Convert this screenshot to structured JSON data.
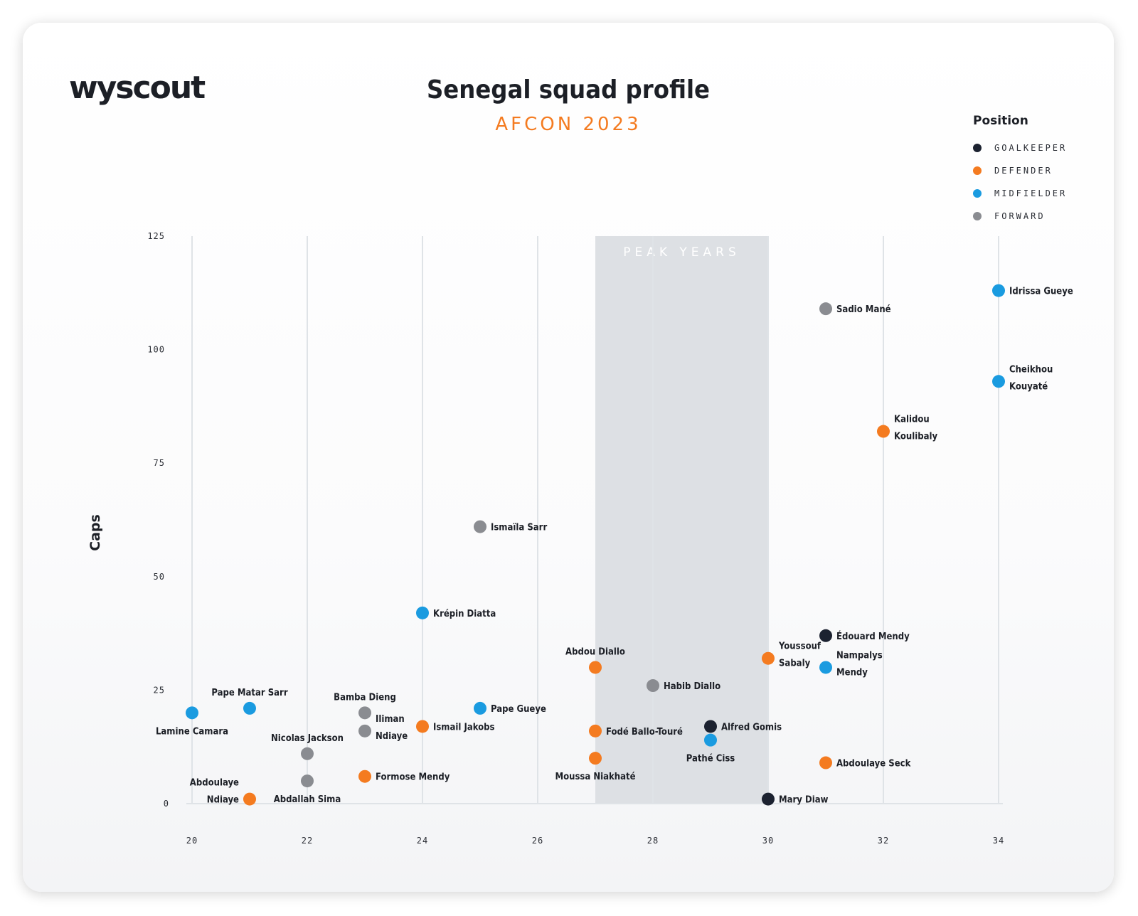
{
  "brand": "wyscout",
  "chart_data": {
    "type": "scatter",
    "title": "Senegal squad profile",
    "subtitle": "AFCON 2023",
    "ylabel": "Caps",
    "xlabel": "",
    "xlim": [
      20,
      34
    ],
    "ylim": [
      0,
      125
    ],
    "x_ticks": [
      20,
      22,
      24,
      26,
      28,
      30,
      32,
      34
    ],
    "y_ticks": [
      0,
      25,
      50,
      75,
      100,
      125
    ],
    "grid": "vertical",
    "shaded_region": {
      "label": "PEAK YEARS",
      "x_range": [
        27,
        30
      ]
    },
    "legend": {
      "title": "Position",
      "placement": "top-right",
      "entries": [
        {
          "key": "GK",
          "label": "GOALKEEPER",
          "color": "#1c2230"
        },
        {
          "key": "DF",
          "label": "DEFENDER",
          "color": "#f47b20"
        },
        {
          "key": "MF",
          "label": "MIDFIELDER",
          "color": "#1a9be0"
        },
        {
          "key": "FW",
          "label": "FORWARD",
          "color": "#8a8c91"
        }
      ]
    },
    "points": [
      {
        "lines": [
          "Idrissa Gueye"
        ],
        "x": 34,
        "y": 113,
        "pos": "MF",
        "anchor": "right"
      },
      {
        "lines": [
          "Sadio Mané"
        ],
        "x": 31,
        "y": 109,
        "pos": "FW",
        "anchor": "right"
      },
      {
        "lines": [
          "Cheikhou",
          "Kouyaté"
        ],
        "x": 34,
        "y": 93,
        "pos": "MF",
        "anchor": "right"
      },
      {
        "lines": [
          "Kalidou",
          "Koulibaly"
        ],
        "x": 32,
        "y": 82,
        "pos": "DF",
        "anchor": "right"
      },
      {
        "lines": [
          "Ismaïla Sarr"
        ],
        "x": 25,
        "y": 61,
        "pos": "FW",
        "anchor": "right"
      },
      {
        "lines": [
          "Krépin Diatta"
        ],
        "x": 24,
        "y": 42,
        "pos": "MF",
        "anchor": "right"
      },
      {
        "lines": [
          "Édouard Mendy"
        ],
        "x": 31,
        "y": 37,
        "pos": "GK",
        "anchor": "right"
      },
      {
        "lines": [
          "Youssouf",
          "Sabaly"
        ],
        "x": 30,
        "y": 32,
        "pos": "DF",
        "anchor": "right"
      },
      {
        "lines": [
          "Nampalys",
          "Mendy"
        ],
        "x": 31,
        "y": 30,
        "pos": "MF",
        "anchor": "right"
      },
      {
        "lines": [
          "Abdou Diallo"
        ],
        "x": 27,
        "y": 30,
        "pos": "DF",
        "anchor": "above"
      },
      {
        "lines": [
          "Habib Diallo"
        ],
        "x": 28,
        "y": 26,
        "pos": "FW",
        "anchor": "right"
      },
      {
        "lines": [
          "Pape Matar Sarr"
        ],
        "x": 21,
        "y": 21,
        "pos": "MF",
        "anchor": "above"
      },
      {
        "lines": [
          "Lamine Camara"
        ],
        "x": 20,
        "y": 20,
        "pos": "MF",
        "anchor": "below"
      },
      {
        "lines": [
          "Pape Gueye"
        ],
        "x": 25,
        "y": 21,
        "pos": "MF",
        "anchor": "right"
      },
      {
        "lines": [
          "Bamba Dieng"
        ],
        "x": 23,
        "y": 20,
        "pos": "FW",
        "anchor": "above"
      },
      {
        "lines": [
          "Ismail Jakobs"
        ],
        "x": 24,
        "y": 17,
        "pos": "DF",
        "anchor": "right"
      },
      {
        "lines": [
          "Iliman",
          "Ndiaye"
        ],
        "x": 23,
        "y": 16,
        "pos": "FW",
        "anchor": "right"
      },
      {
        "lines": [
          "Alfred Gomis"
        ],
        "x": 29,
        "y": 17,
        "pos": "GK",
        "anchor": "right"
      },
      {
        "lines": [
          "Fodé Ballo-Touré"
        ],
        "x": 27,
        "y": 16,
        "pos": "DF",
        "anchor": "right"
      },
      {
        "lines": [
          "Pathé Ciss"
        ],
        "x": 29,
        "y": 14,
        "pos": "MF",
        "anchor": "below"
      },
      {
        "lines": [
          "Nicolas Jackson"
        ],
        "x": 22,
        "y": 11,
        "pos": "FW",
        "anchor": "above"
      },
      {
        "lines": [
          "Moussa Niakhaté"
        ],
        "x": 27,
        "y": 10,
        "pos": "DF",
        "anchor": "below"
      },
      {
        "lines": [
          "Abdoulaye Seck"
        ],
        "x": 31,
        "y": 9,
        "pos": "DF",
        "anchor": "right"
      },
      {
        "lines": [
          "Formose Mendy"
        ],
        "x": 23,
        "y": 6,
        "pos": "DF",
        "anchor": "right"
      },
      {
        "lines": [
          "Abdallah Sima"
        ],
        "x": 22,
        "y": 5,
        "pos": "FW",
        "anchor": "below"
      },
      {
        "lines": [
          "Abdoulaye",
          "Ndiaye"
        ],
        "x": 21,
        "y": 1,
        "pos": "DF",
        "anchor": "left"
      },
      {
        "lines": [
          "Mary Diaw"
        ],
        "x": 30,
        "y": 1,
        "pos": "GK",
        "anchor": "right"
      }
    ]
  }
}
